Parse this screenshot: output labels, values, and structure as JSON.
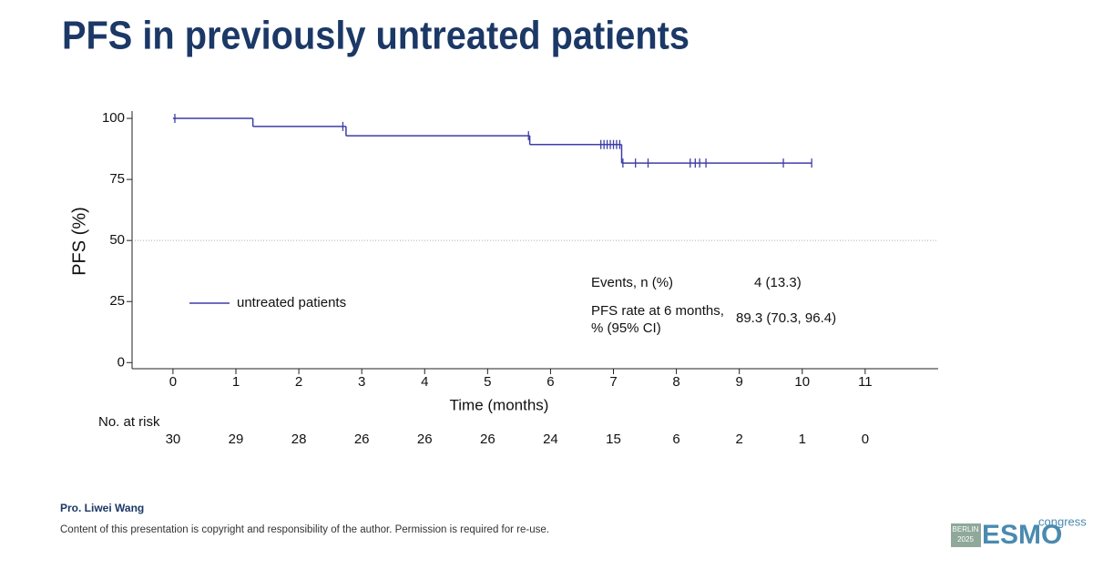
{
  "chart_data": {
    "type": "step",
    "title": "PFS in previously untreated patients",
    "x_label": "Time (months)",
    "y_label": "PFS (%)",
    "xlim": [
      -0.65,
      12.16
    ],
    "ylim": [
      -2.5,
      103
    ],
    "xticks": [
      0,
      1,
      2,
      3,
      4,
      5,
      6,
      7,
      8,
      9,
      10,
      11
    ],
    "yticks": [
      0,
      25,
      50,
      75,
      100
    ],
    "reference_line": 50,
    "series": [
      {
        "name": "untreated patients",
        "color": "#3d3da8",
        "x": [
          0,
          1.27,
          2.75,
          5.67,
          7.13,
          10.15
        ],
        "values": [
          100,
          96.7,
          92.9,
          89.3,
          81.7,
          81.7
        ],
        "censor_x": [
          0.03,
          2.7,
          5.65,
          6.8,
          6.85,
          6.9,
          6.95,
          7.0,
          7.05,
          7.1,
          7.15,
          7.35,
          7.55,
          8.22,
          8.3,
          8.37,
          8.47,
          9.7,
          10.15
        ],
        "censor_values": [
          100,
          96.7,
          92.9,
          89.3,
          89.3,
          89.3,
          89.3,
          89.3,
          89.3,
          89.3,
          81.7,
          81.7,
          81.7,
          81.7,
          81.7,
          81.7,
          81.7,
          81.7,
          81.7
        ]
      }
    ],
    "stats": [
      {
        "label": "Events, n (%)",
        "value": "4 (13.3)"
      },
      {
        "label": "PFS rate at 6 months, % (95% CI)",
        "value": "89.3 (70.3, 96.4)"
      }
    ],
    "risk_table": {
      "label": "No. at risk",
      "values": [
        30,
        29,
        28,
        26,
        26,
        26,
        24,
        15,
        6,
        2,
        1,
        0
      ]
    }
  },
  "footer": {
    "presenter": "Pro. Liwei Wang",
    "copyright": "Content of this presentation is copyright and responsibility of the author. Permission is required for re-use.",
    "logo": {
      "city": "BERLIN",
      "year": "2025",
      "brand": "ESMO",
      "word": "congress"
    }
  }
}
